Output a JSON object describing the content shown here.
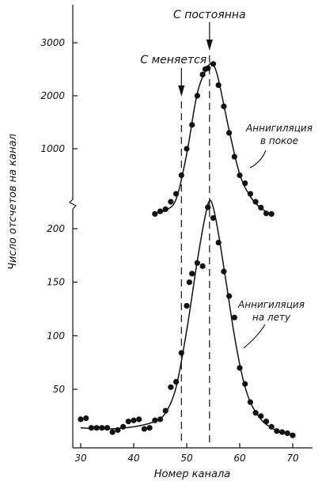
{
  "chart_data": {
    "type": "scatter",
    "title": "",
    "xlabel": "Номер канала",
    "ylabel": "Число отсчетов на канал",
    "xlim": [
      28,
      73
    ],
    "x_ticks": [
      "30",
      "40",
      "50",
      "60",
      "70"
    ],
    "grid": false,
    "broken_y_axis": true,
    "panels": [
      {
        "name": "upper",
        "ylim": [
          0,
          3300
        ],
        "y_ticks": [
          "1000",
          "2000",
          "3000"
        ],
        "series": [
          {
            "name": "Аннигиляция в покое",
            "points": [
              [
                44,
                -230
              ],
              [
                45,
                -180
              ],
              [
                46,
                -140
              ],
              [
                47,
                0
              ],
              [
                48,
                150
              ],
              [
                49,
                500
              ],
              [
                50,
                1000
              ],
              [
                51,
                1450
              ],
              [
                52,
                2000
              ],
              [
                53,
                2400
              ],
              [
                53.5,
                2500
              ],
              [
                54,
                2520
              ],
              [
                55,
                2600
              ],
              [
                56,
                2200
              ],
              [
                57,
                1800
              ],
              [
                58,
                1300
              ],
              [
                59,
                850
              ],
              [
                60,
                500
              ],
              [
                61,
                350
              ],
              [
                62,
                150
              ],
              [
                63,
                0
              ],
              [
                64,
                -110
              ],
              [
                65,
                -220
              ],
              [
                66,
                -230
              ]
            ],
            "fit": [
              [
                44,
                -220
              ],
              [
                46,
                -160
              ],
              [
                48,
                50
              ],
              [
                50,
                900
              ],
              [
                52,
                2050
              ],
              [
                54,
                2550
              ],
              [
                55,
                2580
              ],
              [
                56,
                2300
              ],
              [
                58,
                1350
              ],
              [
                60,
                520
              ],
              [
                62,
                100
              ],
              [
                64,
                -120
              ],
              [
                66,
                -240
              ]
            ],
            "annotation": [
              "Аннигиляция",
              "в покое"
            ]
          }
        ]
      },
      {
        "name": "lower",
        "ylim": [
          0,
          225
        ],
        "y_ticks": [
          "50",
          "100",
          "150",
          "200"
        ],
        "series": [
          {
            "name": "Аннигиляция на лету",
            "points": [
              [
                30,
                22
              ],
              [
                31,
                23
              ],
              [
                32,
                14
              ],
              [
                33,
                14
              ],
              [
                34,
                14
              ],
              [
                35,
                14
              ],
              [
                36,
                10
              ],
              [
                37,
                12
              ],
              [
                38,
                15
              ],
              [
                39,
                20
              ],
              [
                40,
                21
              ],
              [
                41,
                22
              ],
              [
                42,
                13
              ],
              [
                43,
                14
              ],
              [
                44,
                21
              ],
              [
                45,
                22
              ],
              [
                46,
                30
              ],
              [
                47,
                52
              ],
              [
                48,
                57
              ],
              [
                49,
                84
              ],
              [
                50,
                128
              ],
              [
                50.5,
                150
              ],
              [
                51,
                158
              ],
              [
                52,
                168
              ],
              [
                53,
                165
              ],
              [
                54,
                220
              ],
              [
                55,
                210
              ],
              [
                56,
                187
              ],
              [
                57,
                160
              ],
              [
                58,
                137
              ],
              [
                59,
                117
              ],
              [
                60,
                70
              ],
              [
                61,
                55
              ],
              [
                62,
                38
              ],
              [
                63,
                28
              ],
              [
                64,
                25
              ],
              [
                65,
                20
              ],
              [
                66,
                15
              ],
              [
                67,
                11
              ],
              [
                68,
                10
              ],
              [
                69,
                9
              ],
              [
                70,
                7
              ]
            ],
            "fit": [
              [
                30,
                14
              ],
              [
                35,
                13
              ],
              [
                40,
                15
              ],
              [
                44,
                20
              ],
              [
                46,
                28
              ],
              [
                48,
                52
              ],
              [
                50,
                105
              ],
              [
                52,
                170
              ],
              [
                53.5,
                212
              ],
              [
                54.3,
                226
              ],
              [
                55,
                220
              ],
              [
                56,
                195
              ],
              [
                57.5,
                148
              ],
              [
                59,
                100
              ],
              [
                60.5,
                62
              ],
              [
                62,
                38
              ],
              [
                64,
                22
              ],
              [
                66,
                14
              ],
              [
                68,
                10
              ],
              [
                70,
                8
              ]
            ],
            "annotation": [
              "Аннигиляция",
              "на лету"
            ]
          }
        ]
      }
    ],
    "vertical_markers": [
      {
        "x": 49,
        "label": "С меняется",
        "arrow": true
      },
      {
        "x": 54.3,
        "label": "С постоянна",
        "arrow": true
      }
    ]
  }
}
